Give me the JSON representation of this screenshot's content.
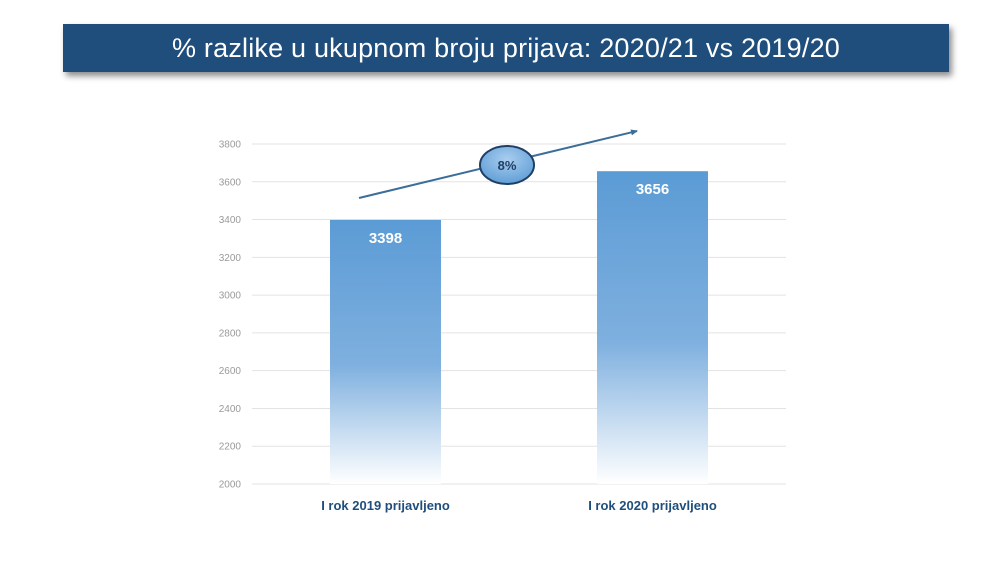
{
  "title": "% razlike u ukupnom broju prijava: 2020/21 vs 2019/20",
  "colors": {
    "banner": "#1f4e7c",
    "bar_top": "#5b9bd5",
    "bar_bottom": "#ffffff",
    "arrow": "#3b6e99",
    "badge": "#5b9bd5",
    "category_text": "#1f4e7c"
  },
  "badge": {
    "label": "8%"
  },
  "chart_data": {
    "type": "bar",
    "title": "% razlike u ukupnom broju prijava: 2020/21 vs 2019/20",
    "categories": [
      "I rok 2019 prijavljeno",
      "I rok 2020 prijavljeno"
    ],
    "values": [
      3398,
      3656
    ],
    "data_labels": [
      "3398",
      "3656"
    ],
    "ylim": [
      2000,
      3800
    ],
    "yticks": [
      2000,
      2200,
      2400,
      2600,
      2800,
      3000,
      3200,
      3400,
      3600,
      3800
    ],
    "ytick_labels": [
      "2000",
      "2200",
      "2400",
      "2600",
      "2800",
      "3000",
      "3200",
      "3400",
      "3600",
      "3800"
    ],
    "grid": true,
    "legend": "none",
    "annotation": "8%",
    "xlabel": "",
    "ylabel": ""
  }
}
